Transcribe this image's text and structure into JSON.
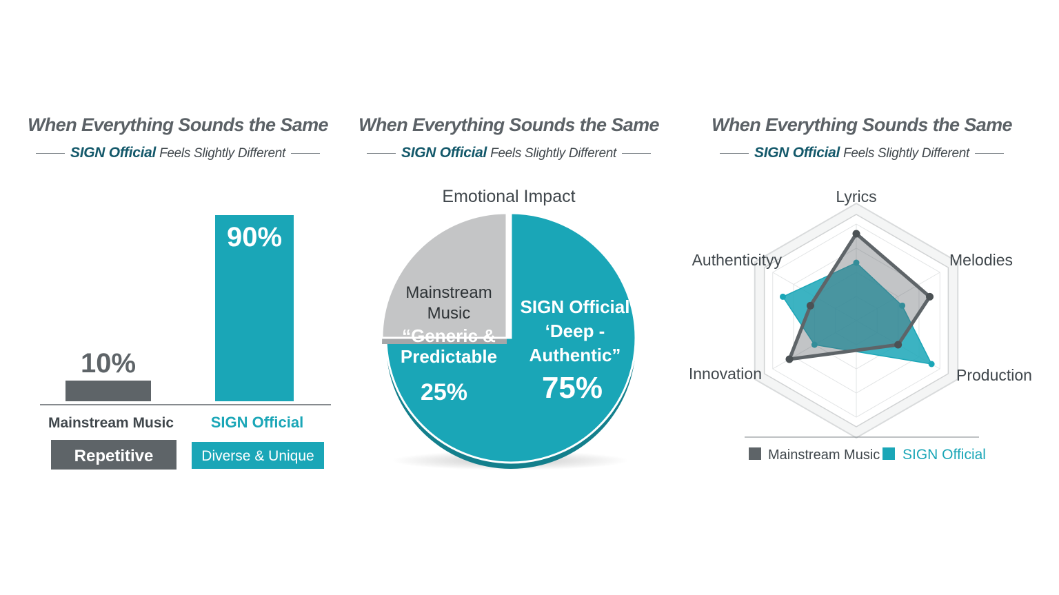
{
  "colors": {
    "mainstream": "#5e6468",
    "sign": "#1aa6b7",
    "pie_grey": "#c4c5c6",
    "title_grey": "#5b6166",
    "brand_dark": "#13586a"
  },
  "panels": [
    {
      "title": "When Everything Sounds the Same",
      "subtitle_brand": "SIGN Official",
      "subtitle_rest": "Feels Slightly Different"
    },
    {
      "title": "When Everything Sounds the Same",
      "subtitle_brand": "SIGN Official",
      "subtitle_rest": "Feels Slightly Different"
    },
    {
      "title": "When Everything Sounds the Same",
      "subtitle_brand": "SIGN Official",
      "subtitle_rest": "Feels Slightly Different"
    }
  ],
  "chart_data": [
    {
      "type": "bar",
      "categories": [
        "Mainstream Music",
        "SIGN Official"
      ],
      "values": [
        10,
        90
      ],
      "value_labels": [
        "10%",
        "90%"
      ],
      "tags": [
        "Repetitive",
        "Diverse & Unique"
      ],
      "ylim": [
        0,
        100
      ]
    },
    {
      "type": "pie",
      "title": "Emotional Impact",
      "slices": [
        {
          "label_lines": [
            "SIGN Official",
            "‘Deep -",
            "Authentic”"
          ],
          "value": 75,
          "value_label": "75%"
        },
        {
          "label_lines": [
            "Mainstream",
            "Music",
            "“Generic &",
            "Predictable"
          ],
          "value": 25,
          "value_label": "25%"
        }
      ]
    },
    {
      "type": "radar",
      "axes": [
        "Lyrics",
        "Melodies",
        "Production",
        "Innovation",
        "Authenticityy"
      ],
      "scale": [
        0,
        10
      ],
      "series": [
        {
          "name": "Mainstream Music",
          "values": [
            9,
            8,
            5,
            8,
            5
          ]
        },
        {
          "name": "SIGN Official",
          "values": [
            6,
            5,
            9,
            5,
            8
          ]
        }
      ],
      "legend": [
        "Mainstream Music",
        "SIGN Official"
      ]
    }
  ]
}
